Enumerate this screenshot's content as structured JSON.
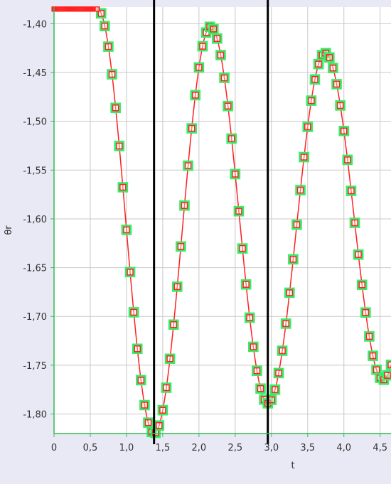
{
  "chart_data": {
    "type": "scatter",
    "xlabel": "t",
    "ylabel": "θr",
    "xlim": [
      0,
      4.65
    ],
    "ylim": [
      -1.82,
      -1.383
    ],
    "grid": true,
    "x_ticks": [
      "0",
      "0,5",
      "1,0",
      "1,5",
      "2,0",
      "2,5",
      "3,0",
      "3,5",
      "4,0",
      "4,5"
    ],
    "y_ticks": [
      "-1,40",
      "-1,45",
      "-1,50",
      "-1,55",
      "-1,60",
      "-1,65",
      "-1,70",
      "-1,75",
      "-1,80"
    ],
    "vertical_markers": [
      1.38,
      2.95
    ],
    "signal": {
      "t_start": 0.6,
      "initial_value": -1.385,
      "sample_step": 0.05,
      "extrema": [
        [
          0.6,
          -1.385
        ],
        [
          1.38,
          -1.82
        ],
        [
          2.16,
          -1.403
        ],
        [
          2.95,
          -1.789
        ],
        [
          3.74,
          -1.43
        ],
        [
          4.54,
          -1.765
        ]
      ]
    },
    "series": [
      {
        "name": "",
        "role": "fit-curve",
        "color": "#ff2020"
      },
      {
        "name": "",
        "role": "samples",
        "color": "#ff2020",
        "outline": "#33ee66"
      }
    ],
    "colors": {
      "background": "#e9e9f5",
      "plot": "#ffffff",
      "grid": "#c8c8c8",
      "axis": "#33bb55",
      "marker_line": "#000000"
    }
  }
}
